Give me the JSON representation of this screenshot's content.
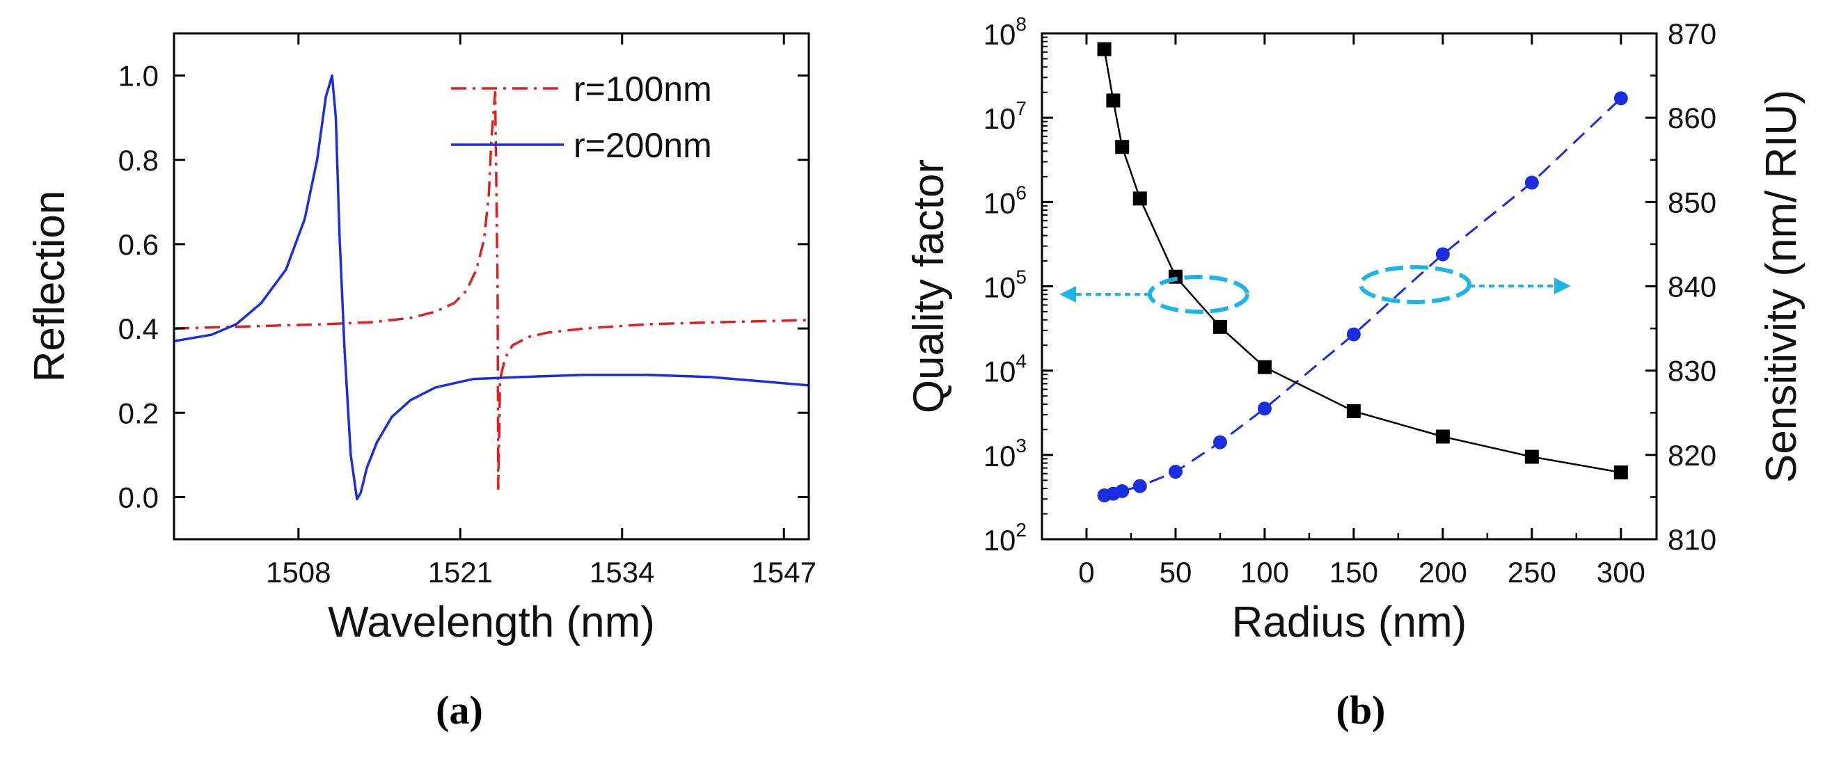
{
  "chart_data": [
    {
      "type": "line",
      "panel_label": "(a)",
      "xlabel": "Wavelength (nm)",
      "ylabel": "Reflection",
      "xlim": [
        1498,
        1549
      ],
      "ylim": [
        -0.1,
        1.1
      ],
      "xticks": [
        1508,
        1521,
        1534,
        1547
      ],
      "yticks": [
        0.0,
        0.2,
        0.4,
        0.6,
        0.8,
        1.0
      ],
      "ytick_labels": [
        "0.0",
        "0.2",
        "0.4",
        "0.6",
        "0.8",
        "1.0"
      ],
      "legend_position": "top-right",
      "series": [
        {
          "name": "r=100nm",
          "color": "#e02020",
          "style": "dash-dot",
          "x": [
            1498,
            1504,
            1510,
            1514,
            1517,
            1519,
            1520.5,
            1521.5,
            1522.3,
            1522.9,
            1523.3,
            1523.5,
            1523.8,
            1524.0,
            1524.05,
            1524.2,
            1524.6,
            1525.2,
            1526.5,
            1528,
            1531,
            1536,
            1542,
            1549
          ],
          "y": [
            0.4,
            0.405,
            0.41,
            0.415,
            0.425,
            0.44,
            0.46,
            0.49,
            0.54,
            0.61,
            0.72,
            0.85,
            0.96,
            0.5,
            0.02,
            0.28,
            0.33,
            0.36,
            0.38,
            0.39,
            0.4,
            0.41,
            0.415,
            0.42
          ]
        },
        {
          "name": "r=200nm",
          "color": "#1a2de0",
          "style": "solid",
          "x": [
            1498,
            1501,
            1503,
            1505,
            1507,
            1508.5,
            1509.5,
            1510.2,
            1510.7,
            1511.0,
            1511.3,
            1511.7,
            1512.2,
            1512.7,
            1513.0,
            1513.5,
            1514.3,
            1515.5,
            1517,
            1519,
            1522,
            1526,
            1531,
            1536,
            1541,
            1545,
            1549
          ],
          "y": [
            0.37,
            0.385,
            0.41,
            0.46,
            0.54,
            0.66,
            0.8,
            0.95,
            1.0,
            0.9,
            0.62,
            0.35,
            0.1,
            -0.005,
            0.01,
            0.07,
            0.13,
            0.19,
            0.23,
            0.26,
            0.28,
            0.285,
            0.29,
            0.29,
            0.285,
            0.275,
            0.265
          ]
        }
      ]
    },
    {
      "type": "scatter",
      "panel_label": "(b)",
      "xlabel": "Radius (nm)",
      "ylabel": "Quality factor",
      "y2label": "Sensitivity (nm/ RIU)",
      "xlim": [
        -25,
        320
      ],
      "xticks": [
        0,
        50,
        100,
        150,
        200,
        250,
        300
      ],
      "y_scale": "log",
      "ylim_log10": [
        2,
        8
      ],
      "yticks_base": "10",
      "yticks_exponents": [
        "2",
        "3",
        "4",
        "5",
        "6",
        "7",
        "8"
      ],
      "y2lim": [
        810,
        870
      ],
      "y2ticks": [
        810,
        820,
        830,
        840,
        850,
        860,
        870
      ],
      "series": [
        {
          "name": "Quality factor",
          "axis": "left",
          "color": "#000000",
          "marker": "square",
          "line": "solid",
          "x": [
            10,
            15,
            20,
            30,
            50,
            75,
            100,
            150,
            200,
            250,
            300
          ],
          "y": [
            65000000,
            16000000,
            4500000,
            1100000,
            130000,
            33000,
            11000,
            3300,
            1650,
            950,
            620
          ]
        },
        {
          "name": "Sensitivity",
          "axis": "right",
          "color": "#1a2de0",
          "marker": "circle",
          "line": "dashed",
          "x": [
            10,
            15,
            20,
            30,
            50,
            75,
            100,
            150,
            200,
            250,
            300
          ],
          "y": [
            815.2,
            815.4,
            815.7,
            816.3,
            818.0,
            821.5,
            825.5,
            834.3,
            843.8,
            852.3,
            862.3
          ]
        }
      ],
      "annotations": [
        {
          "text": "",
          "kind": "ellipse-arrow-left",
          "color": "#1eb4e8"
        },
        {
          "text": "",
          "kind": "ellipse-arrow-right",
          "color": "#1eb4e8"
        }
      ]
    }
  ]
}
